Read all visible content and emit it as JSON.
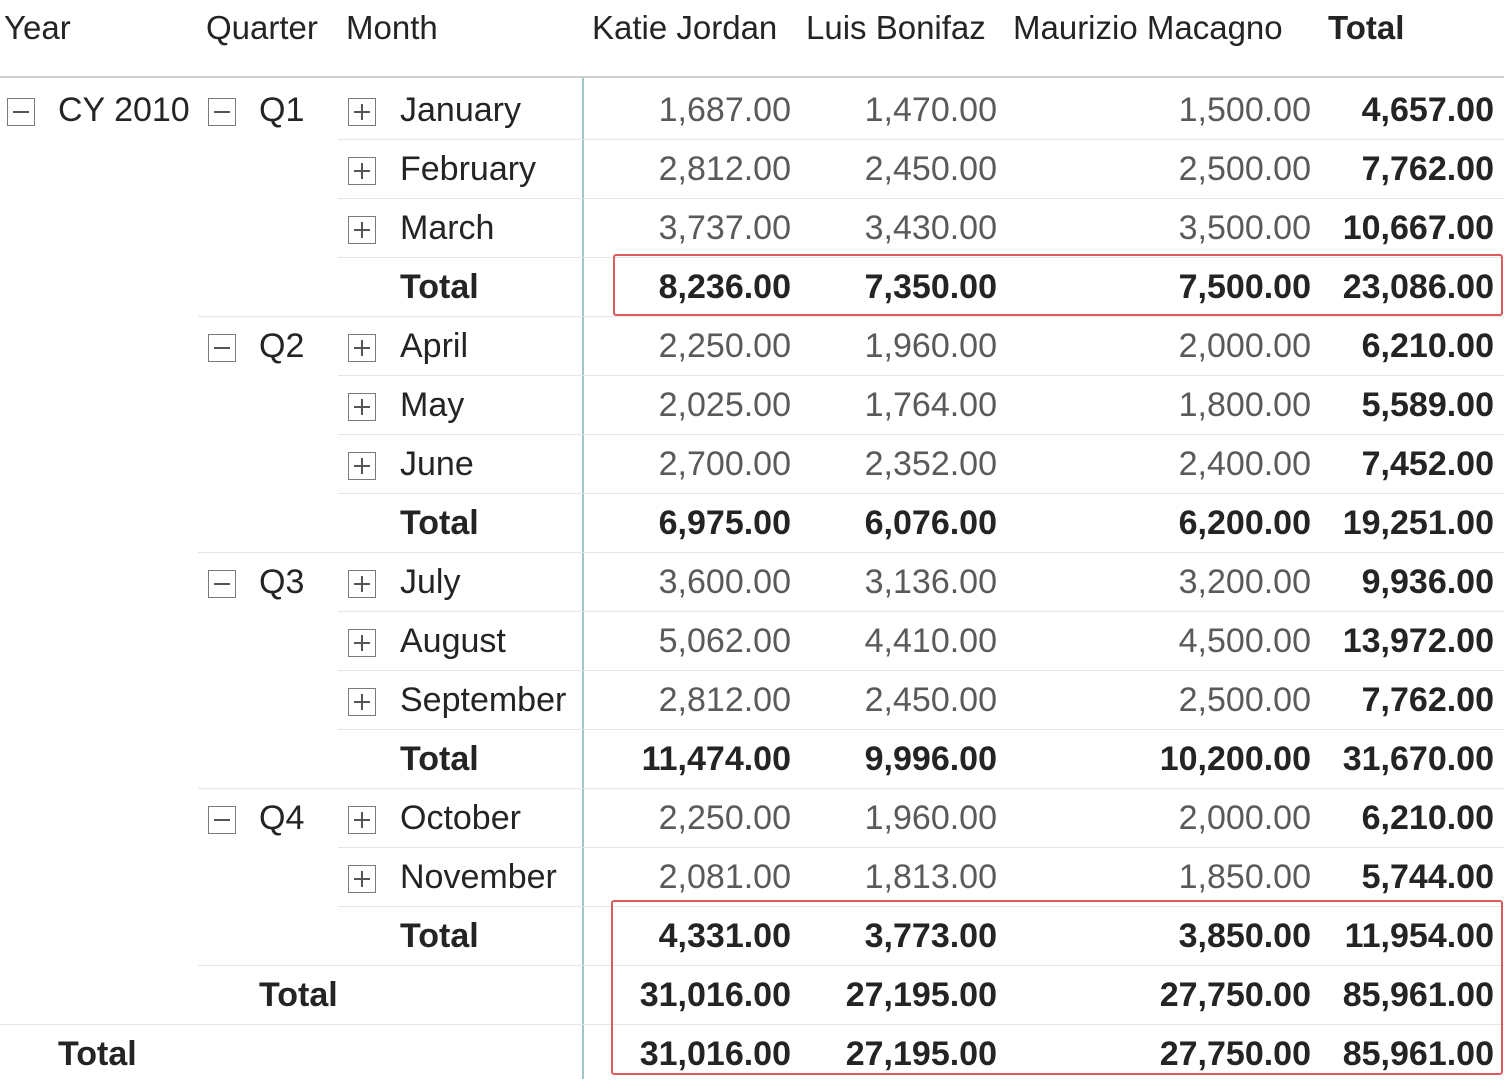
{
  "headers": {
    "year": "Year",
    "quarter": "Quarter",
    "month": "Month",
    "people": [
      "Katie Jordan",
      "Luis Bonifaz",
      "Maurizio Macagno"
    ],
    "total": "Total"
  },
  "year_label": "CY 2010",
  "total_label": "Total",
  "quarters": [
    {
      "label": "Q1",
      "months": [
        {
          "name": "January",
          "values": [
            "1,687.00",
            "1,470.00",
            "1,500.00"
          ],
          "total": "4,657.00"
        },
        {
          "name": "February",
          "values": [
            "2,812.00",
            "2,450.00",
            "2,500.00"
          ],
          "total": "7,762.00"
        },
        {
          "name": "March",
          "values": [
            "3,737.00",
            "3,430.00",
            "3,500.00"
          ],
          "total": "10,667.00"
        }
      ],
      "subtotal": {
        "values": [
          "8,236.00",
          "7,350.00",
          "7,500.00"
        ],
        "total": "23,086.00"
      }
    },
    {
      "label": "Q2",
      "months": [
        {
          "name": "April",
          "values": [
            "2,250.00",
            "1,960.00",
            "2,000.00"
          ],
          "total": "6,210.00"
        },
        {
          "name": "May",
          "values": [
            "2,025.00",
            "1,764.00",
            "1,800.00"
          ],
          "total": "5,589.00"
        },
        {
          "name": "June",
          "values": [
            "2,700.00",
            "2,352.00",
            "2,400.00"
          ],
          "total": "7,452.00"
        }
      ],
      "subtotal": {
        "values": [
          "6,975.00",
          "6,076.00",
          "6,200.00"
        ],
        "total": "19,251.00"
      }
    },
    {
      "label": "Q3",
      "months": [
        {
          "name": "July",
          "values": [
            "3,600.00",
            "3,136.00",
            "3,200.00"
          ],
          "total": "9,936.00"
        },
        {
          "name": "August",
          "values": [
            "5,062.00",
            "4,410.00",
            "4,500.00"
          ],
          "total": "13,972.00"
        },
        {
          "name": "September",
          "values": [
            "2,812.00",
            "2,450.00",
            "2,500.00"
          ],
          "total": "7,762.00"
        }
      ],
      "subtotal": {
        "values": [
          "11,474.00",
          "9,996.00",
          "10,200.00"
        ],
        "total": "31,670.00"
      }
    },
    {
      "label": "Q4",
      "months": [
        {
          "name": "October",
          "values": [
            "2,250.00",
            "1,960.00",
            "2,000.00"
          ],
          "total": "6,210.00"
        },
        {
          "name": "November",
          "values": [
            "2,081.00",
            "1,813.00",
            "1,850.00"
          ],
          "total": "5,744.00"
        }
      ],
      "subtotal": {
        "values": [
          "4,331.00",
          "3,773.00",
          "3,850.00"
        ],
        "total": "11,954.00"
      }
    }
  ],
  "year_total": {
    "values": [
      "31,016.00",
      "27,195.00",
      "27,750.00"
    ],
    "total": "85,961.00"
  },
  "grand_total": {
    "values": [
      "31,016.00",
      "27,195.00",
      "27,750.00"
    ],
    "total": "85,961.00"
  },
  "colors": {
    "highlight": "#e05a5e",
    "divider": "#9ec9c5"
  }
}
